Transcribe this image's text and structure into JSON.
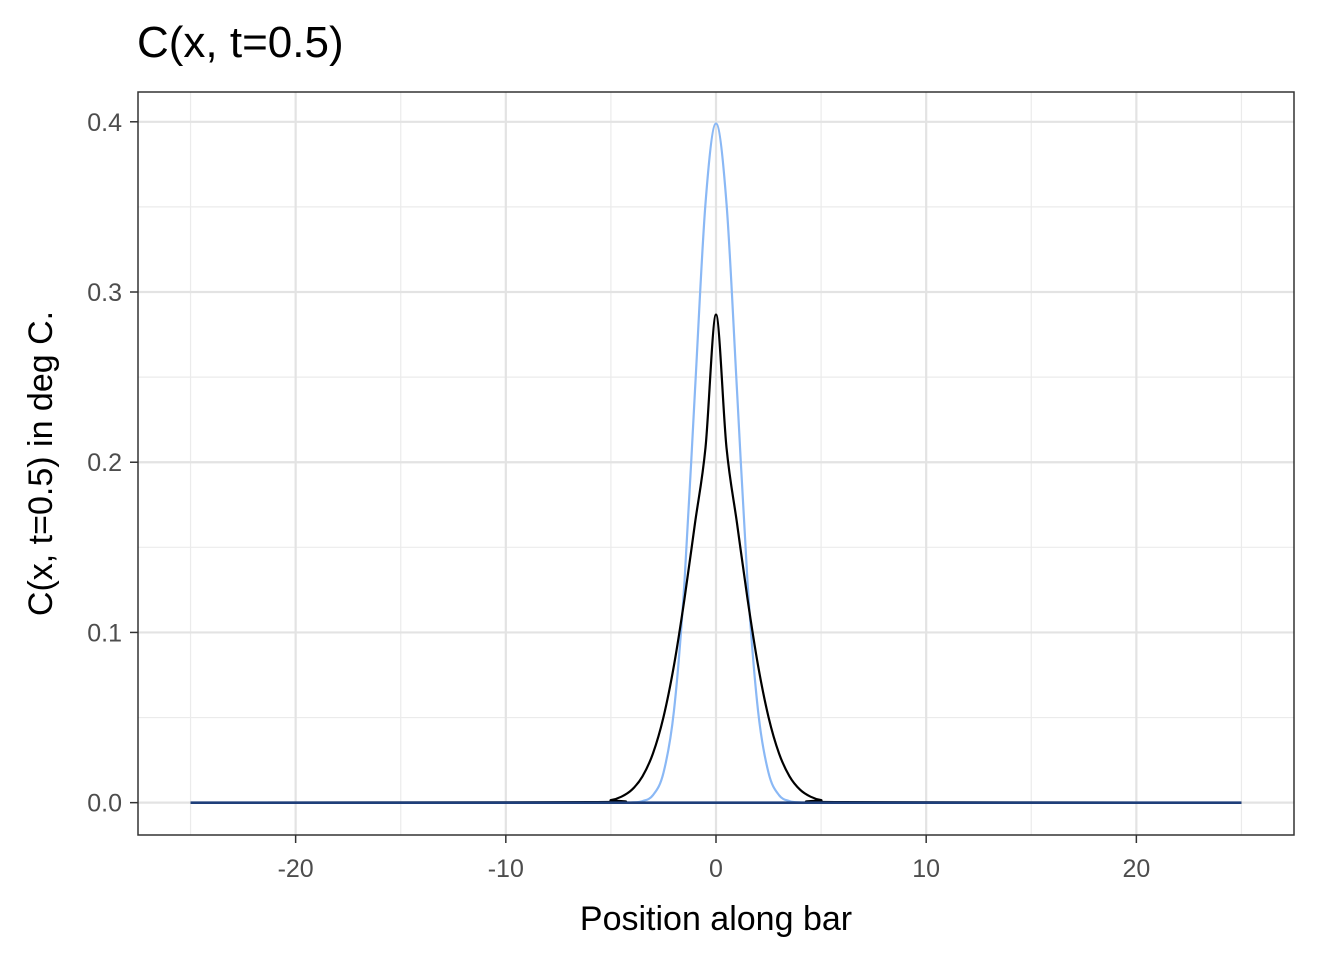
{
  "chart_data": {
    "type": "line",
    "title": "C(x, t=0.5)",
    "xlabel": "Position along bar",
    "ylabel": "C(x, t=0.5) in deg C.",
    "xlim": [
      -27.5,
      27.5
    ],
    "ylim": [
      -0.019,
      0.4175
    ],
    "x_ticks": [
      -20,
      -10,
      0,
      10,
      20
    ],
    "x_tick_labels": [
      "-20",
      "-10",
      "0",
      "10",
      "20"
    ],
    "y_ticks": [
      0.0,
      0.1,
      0.2,
      0.3,
      0.4
    ],
    "y_tick_labels": [
      "0.0",
      "0.1",
      "0.2",
      "0.3",
      "0.4"
    ],
    "grid": true,
    "legend": "none",
    "series": [
      {
        "color": "#8ab8f5",
        "x": [
          -25,
          -5,
          -4,
          -3.5,
          -3,
          -2.5,
          -2,
          -1.5,
          -1,
          -0.5,
          0,
          0.5,
          1,
          1.5,
          2,
          2.5,
          3,
          3.5,
          4,
          5,
          25
        ],
        "y": [
          0.0,
          0.0,
          0.0001,
          0.0009,
          0.0044,
          0.0175,
          0.054,
          0.1295,
          0.242,
          0.352,
          0.399,
          0.352,
          0.242,
          0.1295,
          0.054,
          0.0175,
          0.0044,
          0.0009,
          0.0001,
          0.0,
          0.0
        ]
      },
      {
        "color": "#000000",
        "x": [
          -25,
          -6,
          -5,
          -4.5,
          -4,
          -3.5,
          -3,
          -2.5,
          -2,
          -1.5,
          -1,
          -0.5,
          0,
          0.5,
          1,
          1.5,
          2,
          2.5,
          3,
          3.5,
          4,
          4.5,
          5,
          6,
          25
        ],
        "y": [
          0.0,
          0.0003,
          0.0015,
          0.0035,
          0.0076,
          0.0154,
          0.0289,
          0.0502,
          0.0806,
          0.1197,
          0.1641,
          0.2085,
          0.2867,
          0.2085,
          0.1641,
          0.1197,
          0.0806,
          0.0502,
          0.0289,
          0.0154,
          0.0076,
          0.0035,
          0.0015,
          0.0003,
          0.0
        ]
      },
      {
        "color": "#1f3f7a",
        "x": [
          -25,
          25
        ],
        "y": [
          0.0,
          0.0
        ]
      }
    ]
  }
}
